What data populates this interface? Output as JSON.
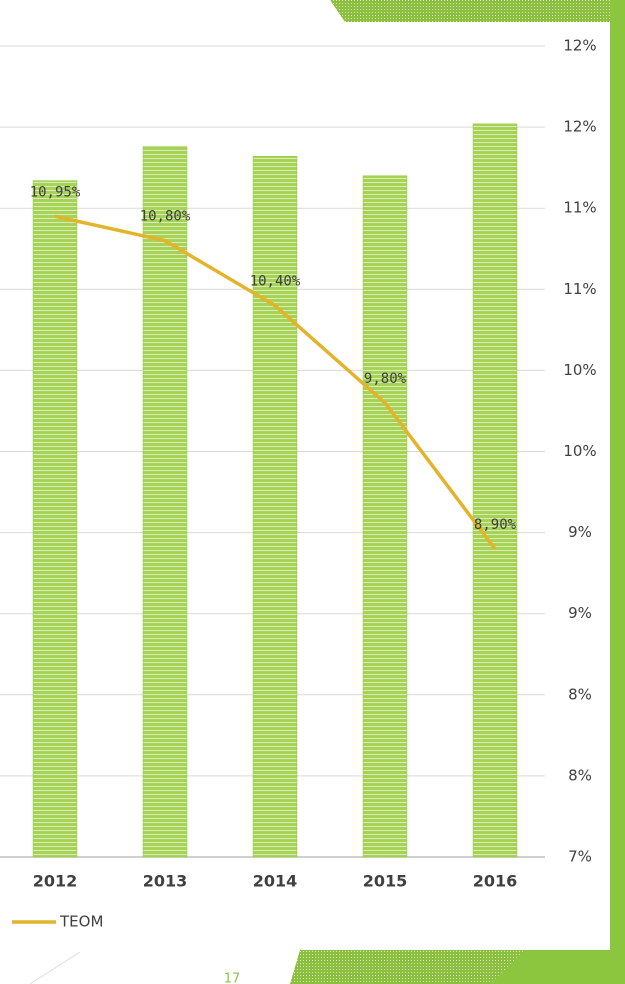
{
  "chart_data": {
    "type": "bar",
    "categories": [
      "2012",
      "2013",
      "2014",
      "2015",
      "2016"
    ],
    "series": [
      {
        "type": "bar",
        "color": "#92c83e",
        "values": [
          11.17,
          11.38,
          11.32,
          11.2,
          11.52
        ]
      },
      {
        "type": "line",
        "name": "TEOM",
        "color": "#e3b32b",
        "values": [
          10.95,
          10.8,
          10.4,
          9.8,
          8.9
        ],
        "value_labels": [
          "10,95%",
          "10,80%",
          "10,40%",
          "9,80%",
          "8,90%"
        ]
      }
    ],
    "ylim": [
      7,
      12
    ],
    "yticks": [
      {
        "value": 7,
        "label": "7%"
      },
      {
        "value": 7.5,
        "label": "8%"
      },
      {
        "value": 8,
        "label": "8%"
      },
      {
        "value": 8.5,
        "label": "9%"
      },
      {
        "value": 9,
        "label": "9%"
      },
      {
        "value": 9.5,
        "label": "10%"
      },
      {
        "value": 10,
        "label": "10%"
      },
      {
        "value": 10.5,
        "label": "11%"
      },
      {
        "value": 11,
        "label": "11%"
      },
      {
        "value": 11.5,
        "label": "12%"
      },
      {
        "value": 12,
        "label": "12%"
      }
    ],
    "grid": true
  },
  "slide": {
    "page_number": "17"
  }
}
